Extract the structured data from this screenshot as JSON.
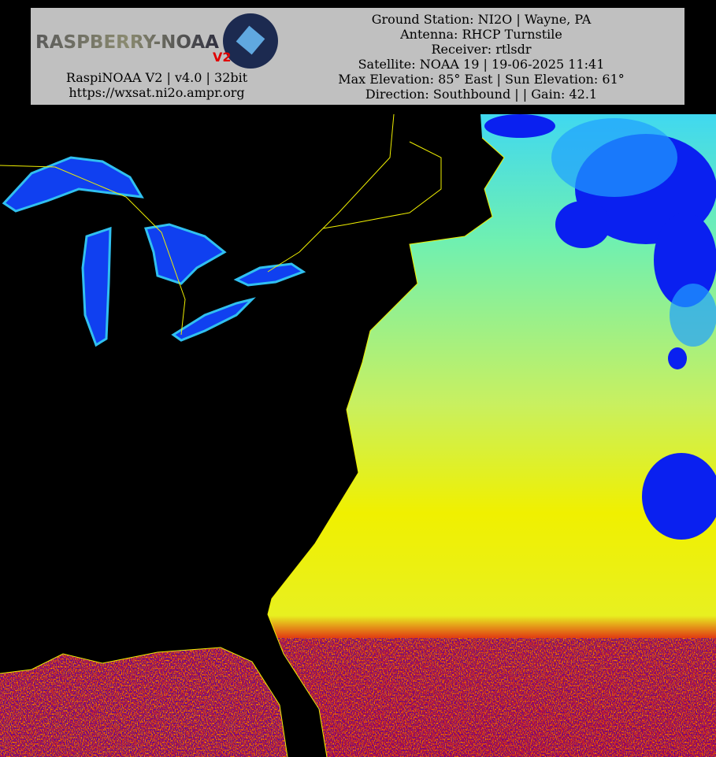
{
  "header": {
    "logo": {
      "name": "RASPBERRY-NOAA",
      "badge": "V2"
    },
    "left_lines": [
      "RaspiNOAA V2 | v4.0 | 32bit",
      "https://wxsat.ni2o.ampr.org"
    ],
    "right_lines": [
      "Ground Station: NI2O | Wayne, PA",
      "Antenna: RHCP Turnstile",
      "Receiver: rtlsdr",
      "Satellite: NOAA 19 | 19-06-2025 11:41",
      "Max Elevation: 85° East | Sun Elevation: 61°",
      "Direction: Southbound | | Gain: 42.1"
    ]
  }
}
